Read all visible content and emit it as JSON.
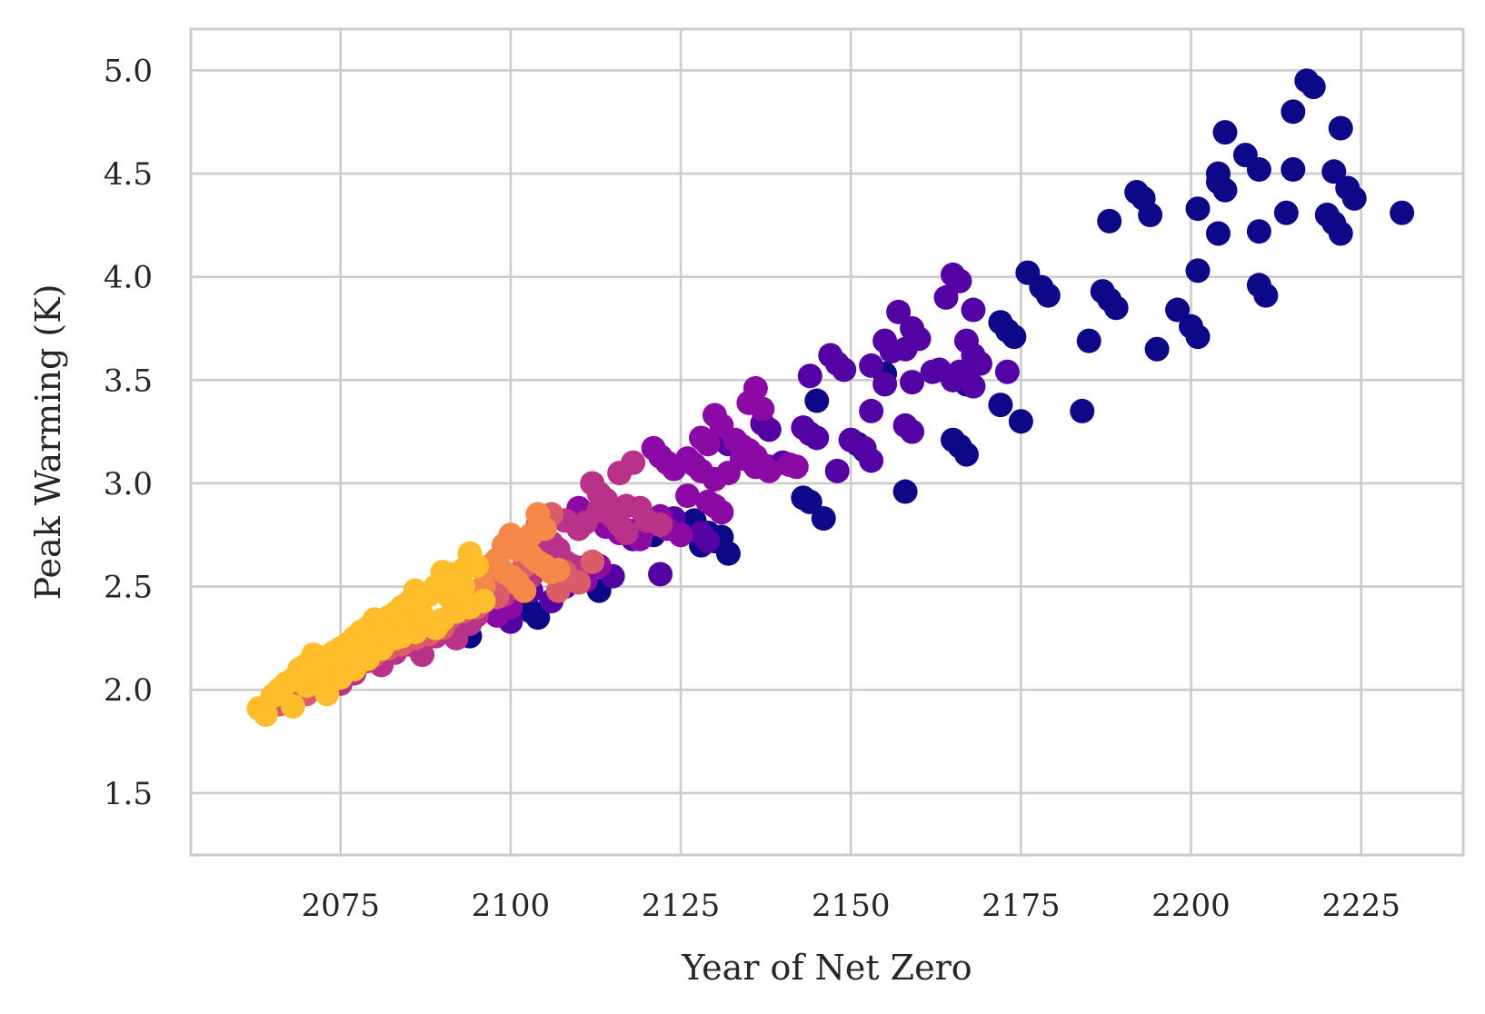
{
  "chart_data": {
    "type": "scatter",
    "title": "",
    "xlabel": "Year of Net Zero",
    "ylabel": "Peak Warming (K)",
    "xlim": [
      2053,
      2240
    ],
    "ylim": [
      1.2,
      5.2
    ],
    "xticks": [
      2075,
      2100,
      2125,
      2150,
      2175,
      2200,
      2225
    ],
    "yticks": [
      1.5,
      2.0,
      2.5,
      3.0,
      3.5,
      4.0,
      4.5,
      5.0
    ],
    "xtick_labels": [
      "2075",
      "2100",
      "2125",
      "2150",
      "2175",
      "2200",
      "2225"
    ],
    "ytick_labels": [
      "1.5",
      "2.0",
      "2.5",
      "3.0",
      "3.5",
      "4.0",
      "4.5",
      "5.0"
    ],
    "grid": true,
    "legend": "none",
    "colormap": "plasma",
    "colors": [
      "#0d0887",
      "#5302a3",
      "#8b0aa5",
      "#b83289",
      "#db5c68",
      "#f48849",
      "#febd2a"
    ],
    "groups": [
      {
        "color": "#0d0887",
        "x": [
          2217,
          2218,
          2215,
          2222,
          2205,
          2210,
          2208,
          2215,
          2204,
          2221,
          2204,
          2205,
          2223,
          2224,
          2192,
          2193,
          2201,
          2194,
          2214,
          2220,
          2231,
          2188,
          2221,
          2204,
          2210,
          2222,
          2201,
          2176,
          2210,
          2211,
          2178,
          2179,
          2187,
          2188,
          2189,
          2198,
          2200,
          2201,
          2172,
          2173,
          2174,
          2185,
          2195,
          2155,
          2145,
          2167,
          2172,
          2175,
          2184,
          2158,
          2165,
          2166,
          2167,
          2150,
          2151,
          2152,
          2143,
          2144,
          2146,
          2127,
          2129,
          2131,
          2130,
          2132,
          2128,
          2113,
          2092,
          2094,
          2103,
          2104,
          2110,
          2121,
          2106
        ],
        "y": [
          4.95,
          4.92,
          4.8,
          4.72,
          4.7,
          4.52,
          4.59,
          4.52,
          4.5,
          4.51,
          4.46,
          4.42,
          4.43,
          4.38,
          4.41,
          4.38,
          4.33,
          4.3,
          4.31,
          4.3,
          4.31,
          4.27,
          4.26,
          4.21,
          4.22,
          4.21,
          4.03,
          4.02,
          3.96,
          3.91,
          3.95,
          3.91,
          3.93,
          3.89,
          3.85,
          3.84,
          3.76,
          3.71,
          3.78,
          3.74,
          3.71,
          3.69,
          3.65,
          3.53,
          3.4,
          3.48,
          3.38,
          3.3,
          3.35,
          2.96,
          3.21,
          3.18,
          3.14,
          3.21,
          3.19,
          3.16,
          2.93,
          2.91,
          2.83,
          2.82,
          2.76,
          2.74,
          2.72,
          2.66,
          2.7,
          2.48,
          2.26,
          2.26,
          2.38,
          2.35,
          2.59,
          2.75,
          2.65
        ]
      },
      {
        "color": "#5302a3",
        "x": [
          2165,
          2166,
          2164,
          2168,
          2157,
          2159,
          2160,
          2155,
          2156,
          2158,
          2162,
          2166,
          2167,
          2168,
          2169,
          2147,
          2148,
          2149,
          2153,
          2155,
          2159,
          2163,
          2144,
          2173,
          2165,
          2167,
          2168,
          2153,
          2143,
          2144,
          2145,
          2150,
          2152,
          2153,
          2148,
          2158,
          2159,
          2137,
          2138,
          2132,
          2134,
          2140,
          2136,
          2138,
          2135,
          2124,
          2128,
          2129,
          2122,
          2118,
          2106,
          2108,
          2115,
          2103,
          2100
        ],
        "y": [
          4.01,
          3.98,
          3.9,
          3.84,
          3.83,
          3.75,
          3.7,
          3.69,
          3.64,
          3.65,
          3.54,
          3.54,
          3.69,
          3.62,
          3.58,
          3.62,
          3.58,
          3.55,
          3.57,
          3.48,
          3.49,
          3.55,
          3.52,
          3.54,
          3.5,
          3.5,
          3.47,
          3.35,
          3.27,
          3.24,
          3.22,
          3.21,
          3.17,
          3.11,
          3.06,
          3.28,
          3.25,
          3.29,
          3.26,
          3.19,
          3.17,
          3.1,
          3.09,
          3.08,
          3.12,
          2.83,
          2.76,
          2.72,
          2.56,
          2.73,
          2.43,
          2.5,
          2.55,
          2.48,
          2.33
        ]
      },
      {
        "color": "#8b0aa5",
        "x": [
          2136,
          2135,
          2137,
          2130,
          2131,
          2128,
          2129,
          2133,
          2134,
          2135,
          2136,
          2137,
          2138,
          2126,
          2127,
          2128,
          2130,
          2132,
          2134,
          2136,
          2121,
          2122,
          2123,
          2124,
          2126,
          2130,
          2131,
          2141,
          2142,
          2129,
          2122,
          2123,
          2125,
          2110,
          2112,
          2114,
          2116,
          2118,
          2119,
          2120,
          2104,
          2106,
          2109,
          2111,
          2113,
          2102,
          2098,
          2100
        ],
        "y": [
          3.46,
          3.39,
          3.36,
          3.33,
          3.28,
          3.22,
          3.19,
          3.21,
          3.18,
          3.16,
          3.13,
          3.09,
          3.06,
          3.12,
          3.09,
          3.06,
          3.02,
          3.05,
          3.12,
          3.08,
          3.17,
          3.13,
          3.1,
          3.07,
          2.94,
          2.89,
          2.86,
          3.09,
          3.08,
          2.91,
          2.84,
          2.78,
          2.75,
          2.88,
          2.83,
          2.79,
          2.76,
          2.77,
          2.73,
          2.79,
          2.66,
          2.63,
          2.59,
          2.53,
          2.6,
          2.55,
          2.36,
          2.4
        ]
      },
      {
        "color": "#b83289",
        "x": [
          2118,
          2116,
          2112,
          2113,
          2114,
          2117,
          2119,
          2120,
          2122,
          2108,
          2110,
          2111,
          2113,
          2115,
          2116,
          2117,
          2105,
          2106,
          2107,
          2108,
          2109,
          2103,
          2101,
          2099,
          2095,
          2092,
          2094,
          2089,
          2087,
          2085,
          2083,
          2081,
          2079,
          2077,
          2075
        ],
        "y": [
          3.1,
          3.05,
          3.0,
          2.95,
          2.92,
          2.89,
          2.88,
          2.82,
          2.8,
          2.82,
          2.78,
          2.81,
          2.87,
          2.84,
          2.8,
          2.76,
          2.75,
          2.71,
          2.68,
          2.62,
          2.6,
          2.55,
          2.5,
          2.46,
          2.36,
          2.25,
          2.32,
          2.26,
          2.17,
          2.22,
          2.18,
          2.12,
          2.14,
          2.08,
          2.03
        ]
      },
      {
        "color": "#db5c68",
        "x": [
          2106,
          2104,
          2112,
          2110,
          2108,
          2107,
          2102,
          2101,
          2100,
          2098,
          2097,
          2096,
          2095,
          2093,
          2091,
          2090,
          2088,
          2086,
          2084,
          2082,
          2080,
          2078,
          2076,
          2074,
          2072,
          2070,
          2068,
          2066,
          2099
        ],
        "y": [
          2.85,
          2.8,
          2.62,
          2.52,
          2.57,
          2.48,
          2.6,
          2.55,
          2.52,
          2.45,
          2.5,
          2.43,
          2.4,
          2.38,
          2.35,
          2.3,
          2.27,
          2.25,
          2.22,
          2.2,
          2.17,
          2.14,
          2.1,
          2.05,
          2.02,
          1.98,
          1.95,
          1.93,
          2.52
        ]
      },
      {
        "color": "#f48849",
        "x": [
          2104,
          2105,
          2103,
          2102,
          2100,
          2099,
          2101,
          2103,
          2104,
          2105,
          2106,
          2107,
          2098,
          2097,
          2099,
          2100,
          2101,
          2102,
          2096,
          2095
        ],
        "y": [
          2.85,
          2.78,
          2.75,
          2.72,
          2.75,
          2.7,
          2.68,
          2.65,
          2.62,
          2.6,
          2.57,
          2.58,
          2.63,
          2.6,
          2.57,
          2.55,
          2.52,
          2.48,
          2.5,
          2.47
        ]
      },
      {
        "color": "#febd2a",
        "x": [
          2094,
          2095,
          2093,
          2091,
          2092,
          2090,
          2089,
          2088,
          2087,
          2086,
          2085,
          2084,
          2083,
          2082,
          2081,
          2080,
          2079,
          2078,
          2077,
          2076,
          2075,
          2074,
          2073,
          2072,
          2071,
          2070,
          2069,
          2068,
          2067,
          2066,
          2065,
          2064,
          2063,
          2096,
          2094,
          2092,
          2090,
          2088,
          2086,
          2084,
          2082,
          2080,
          2078,
          2076,
          2074,
          2072,
          2070,
          2068,
          2089,
          2091,
          2093,
          2087,
          2085,
          2083,
          2081,
          2079,
          2077,
          2075,
          2073
        ],
        "y": [
          2.66,
          2.6,
          2.58,
          2.56,
          2.53,
          2.57,
          2.5,
          2.46,
          2.44,
          2.48,
          2.42,
          2.4,
          2.37,
          2.35,
          2.32,
          2.34,
          2.3,
          2.28,
          2.25,
          2.22,
          2.2,
          2.18,
          2.16,
          2.14,
          2.17,
          2.12,
          2.1,
          2.05,
          2.03,
          2.0,
          1.97,
          1.88,
          1.91,
          2.43,
          2.4,
          2.38,
          2.34,
          2.32,
          2.28,
          2.26,
          2.24,
          2.21,
          2.17,
          2.12,
          2.08,
          2.04,
          2.02,
          1.92,
          2.3,
          2.45,
          2.5,
          2.36,
          2.3,
          2.25,
          2.2,
          2.15,
          2.1,
          2.06,
          1.98
        ]
      }
    ]
  }
}
